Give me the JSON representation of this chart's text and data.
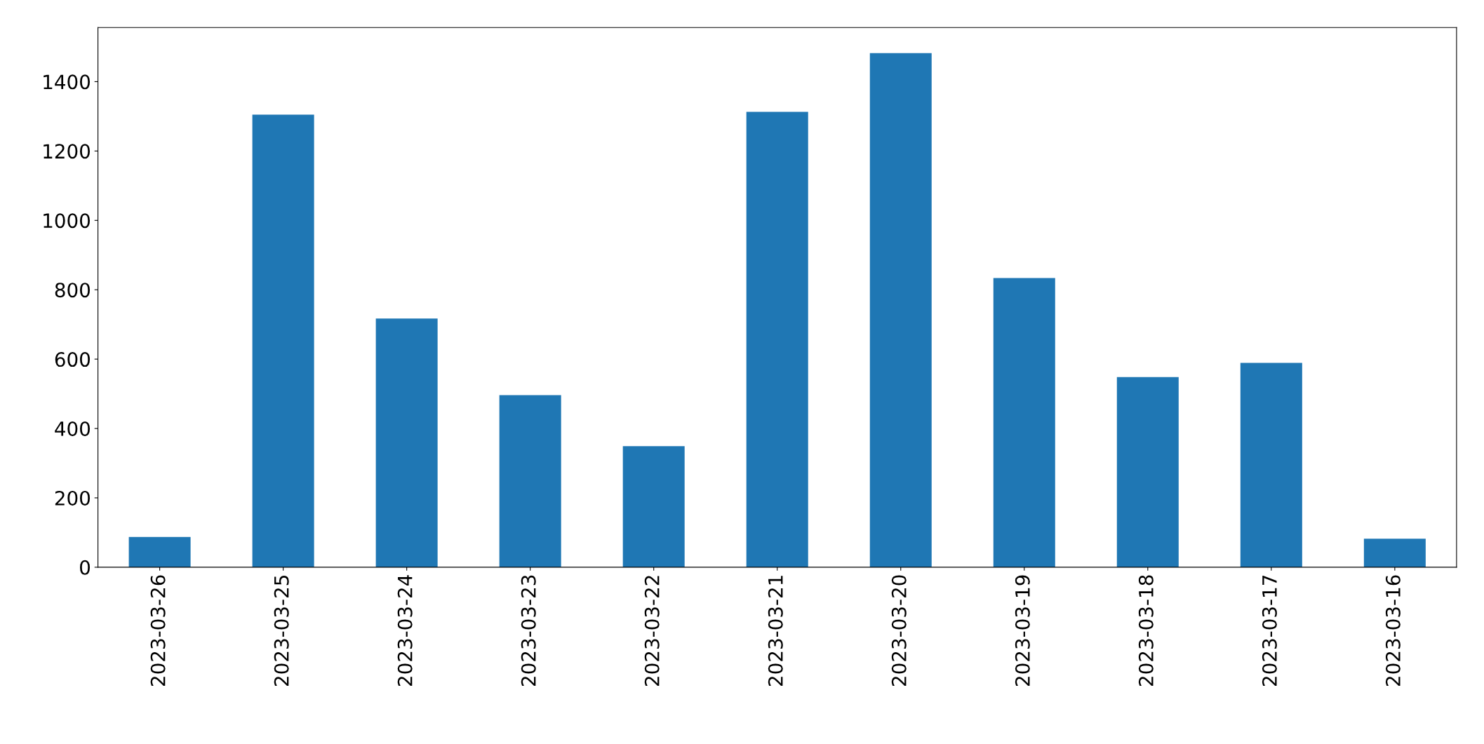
{
  "chart_data": {
    "type": "bar",
    "categories": [
      "2023-03-26",
      "2023-03-25",
      "2023-03-24",
      "2023-03-23",
      "2023-03-22",
      "2023-03-21",
      "2023-03-20",
      "2023-03-19",
      "2023-03-18",
      "2023-03-17",
      "2023-03-16"
    ],
    "values": [
      87,
      1305,
      717,
      496,
      349,
      1313,
      1482,
      834,
      548,
      589,
      82
    ],
    "color": "#1f77b4",
    "ylim": [
      0,
      1556
    ],
    "yticks": [
      0,
      200,
      400,
      600,
      800,
      1000,
      1200,
      1400
    ],
    "grid": false
  }
}
